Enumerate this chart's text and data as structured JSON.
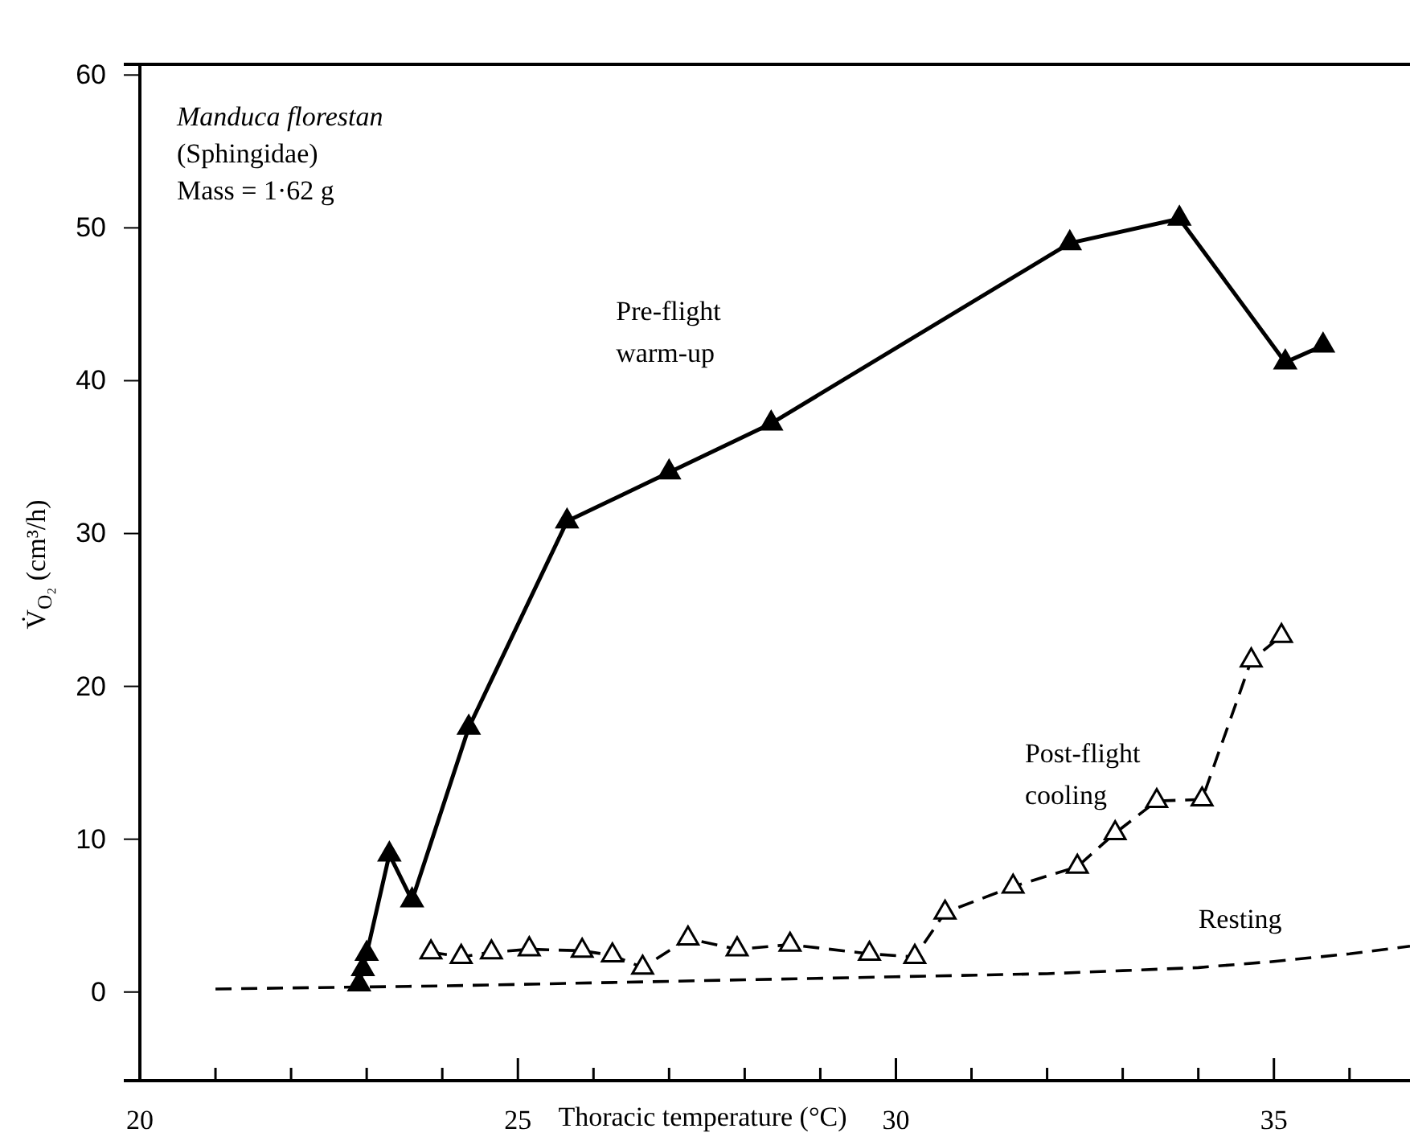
{
  "chart_data": {
    "type": "line",
    "xlabel": "Thoracic temperature (°C)",
    "ylabel": "V̇$_{O₂}$ (cm³/h)",
    "xlim": [
      20,
      36.8
    ],
    "ylim": [
      -5.8,
      60.7
    ],
    "xticks": [
      20,
      {
        "value": 21,
        "label": null
      },
      {
        "value": 22,
        "label": null
      },
      {
        "value": 23,
        "label": null
      },
      {
        "value": 24,
        "label": null
      },
      25,
      {
        "value": 26,
        "label": null
      },
      {
        "value": 27,
        "label": null
      },
      {
        "value": 28,
        "label": null
      },
      {
        "value": 29,
        "label": null
      },
      30,
      {
        "value": 31,
        "label": null
      },
      {
        "value": 32,
        "label": null
      },
      {
        "value": 33,
        "label": null
      },
      {
        "value": 34,
        "label": null
      },
      35,
      {
        "value": 36,
        "label": null
      }
    ],
    "yticks": [
      0,
      10,
      20,
      30,
      40,
      50,
      60
    ],
    "grid": false,
    "series": [
      {
        "name": "Pre-flight warm-up",
        "color": "#000000",
        "marker": "triangle",
        "line_style": "solid",
        "x": [
          22.9,
          22.95,
          23.0,
          23.3,
          23.6,
          24.35,
          25.65,
          27.0,
          28.35,
          32.3,
          33.75,
          35.15,
          35.65
        ],
        "values": [
          0.5,
          1.5,
          2.5,
          9,
          6,
          17.3,
          30.8,
          34,
          37.2,
          49,
          50.6,
          41.2,
          42.3
        ]
      },
      {
        "name": "Post-flight cooling",
        "color": "#000000",
        "marker": "triangle",
        "line_style": "dashed",
        "x": [
          23.85,
          24.25,
          24.65,
          25.15,
          25.85,
          26.25,
          26.65,
          27.25,
          27.9,
          28.6,
          29.65,
          30.25,
          30.65,
          31.55,
          32.4,
          32.9,
          33.45,
          34.05,
          34.7,
          35.1
        ],
        "values": [
          2.6,
          2.3,
          2.6,
          2.8,
          2.7,
          2.4,
          1.6,
          3.5,
          2.8,
          3.1,
          2.5,
          2.3,
          5.2,
          6.9,
          8.2,
          10.4,
          12.5,
          12.6,
          21.7,
          23.3
        ]
      },
      {
        "name": "Resting",
        "color": "#000000",
        "marker": "none",
        "line_style": "dashed",
        "x": [
          21,
          24,
          26,
          28,
          30,
          32,
          33,
          34,
          35,
          36,
          36.8
        ],
        "values": [
          0.2,
          0.4,
          0.6,
          0.8,
          1.0,
          1.2,
          1.4,
          1.6,
          2.0,
          2.5,
          3.0
        ]
      }
    ],
    "annotations": [
      "Manduca florestan",
      "(Sphingidae)",
      "Mass = 1·62 g"
    ]
  }
}
